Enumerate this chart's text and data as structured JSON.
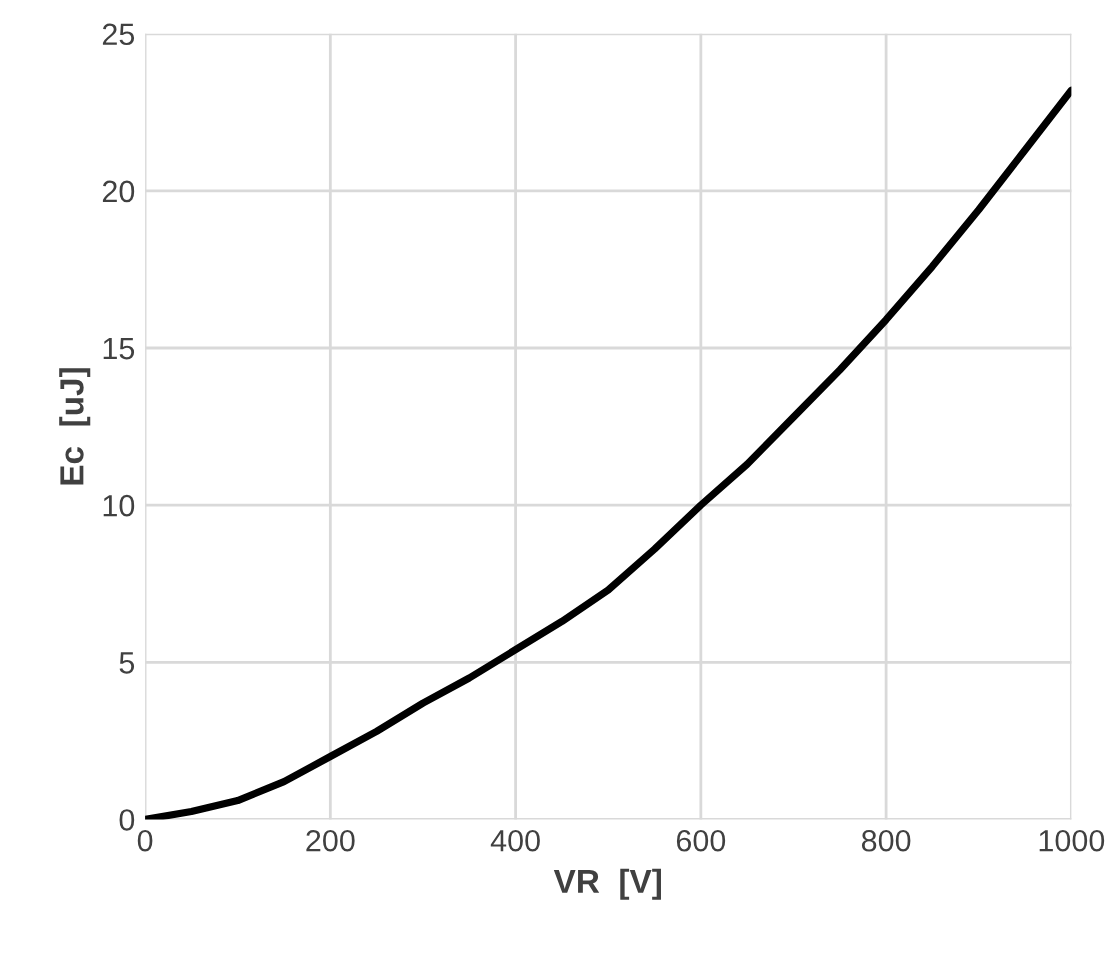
{
  "chart_data": {
    "type": "line",
    "xlabel": "VR  [V]",
    "ylabel": "Ec  [uJ]",
    "x": [
      0,
      50,
      100,
      150,
      200,
      250,
      300,
      350,
      400,
      450,
      500,
      550,
      600,
      650,
      700,
      750,
      800,
      850,
      900,
      950,
      1000
    ],
    "series": [
      {
        "color": "#000000",
        "values": [
          0,
          0.25,
          0.6,
          1.2,
          2.0,
          2.8,
          3.7,
          4.5,
          5.4,
          6.3,
          7.3,
          8.6,
          10.0,
          11.3,
          12.8,
          14.3,
          15.9,
          17.6,
          19.4,
          21.3,
          23.2
        ]
      }
    ],
    "xlim": [
      0,
      1000
    ],
    "ylim": [
      0,
      25
    ],
    "xticks": [
      0,
      200,
      400,
      600,
      800,
      1000
    ],
    "yticks": [
      0,
      5,
      10,
      15,
      20,
      25
    ],
    "grid": true,
    "marker": "none",
    "line_style": "solid",
    "legend": false
  }
}
